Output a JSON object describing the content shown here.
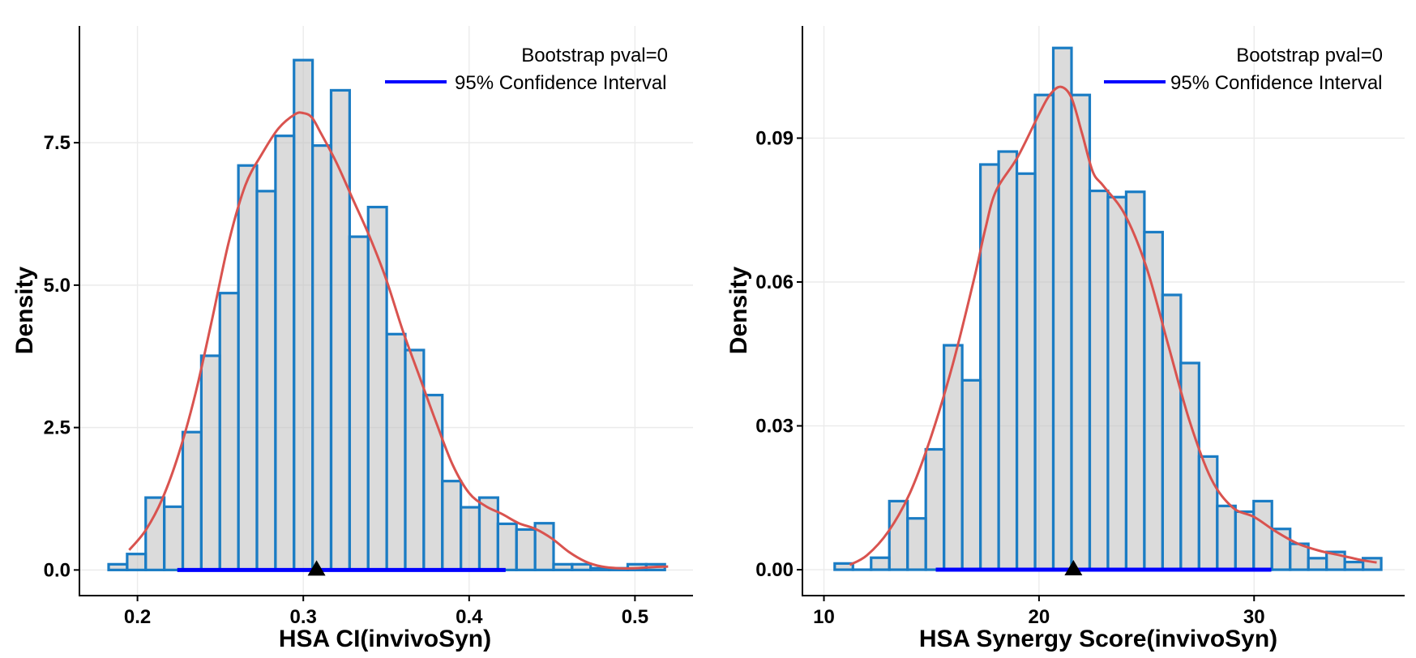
{
  "chart_data": [
    {
      "type": "bar",
      "subtype": "histogram-with-density",
      "xlabel": "HSA CI(invivoSyn)",
      "ylabel": "Density",
      "xlim": [
        0.165,
        0.535
      ],
      "ylim": [
        -0.45,
        9.55
      ],
      "x_ticks": [
        0.2,
        0.3,
        0.4,
        0.5
      ],
      "x_tick_labels": [
        "0.2",
        "0.3",
        "0.4",
        "0.5"
      ],
      "y_ticks": [
        0,
        2.5,
        5.0,
        7.5
      ],
      "y_tick_labels": [
        "0.0",
        "2.5",
        "5.0",
        "7.5"
      ],
      "bin_width": 0.01118,
      "bin_edges_start": 0.1826,
      "bin_values": [
        0.1,
        0.28,
        1.27,
        1.11,
        2.42,
        3.76,
        4.86,
        7.1,
        6.65,
        7.62,
        8.95,
        7.45,
        8.42,
        5.85,
        6.37,
        4.14,
        3.86,
        3.07,
        1.56,
        1.1,
        1.27,
        0.81,
        0.71,
        0.82,
        0.1,
        0.1,
        0.03,
        0.03,
        0.1,
        0.1
      ],
      "density_x": [
        0.195,
        0.205,
        0.215,
        0.225,
        0.235,
        0.245,
        0.255,
        0.265,
        0.275,
        0.285,
        0.295,
        0.3,
        0.305,
        0.31,
        0.32,
        0.33,
        0.34,
        0.35,
        0.36,
        0.37,
        0.38,
        0.39,
        0.4,
        0.41,
        0.42,
        0.43,
        0.44,
        0.45,
        0.46,
        0.47,
        0.48,
        0.49,
        0.5,
        0.51,
        0.52
      ],
      "density_y": [
        0.35,
        0.7,
        1.25,
        2.05,
        3.1,
        4.4,
        5.75,
        6.75,
        7.3,
        7.75,
        8.0,
        8.02,
        7.95,
        7.7,
        7.15,
        6.5,
        5.85,
        5.1,
        4.2,
        3.4,
        2.6,
        1.85,
        1.35,
        1.12,
        0.98,
        0.82,
        0.72,
        0.55,
        0.32,
        0.15,
        0.06,
        0.03,
        0.03,
        0.05,
        0.06
      ],
      "ci": [
        0.224,
        0.422
      ],
      "point_estimate": 0.308,
      "legend": {
        "pval_text": "Bootstrap pval=0",
        "ci_label": "95% Confidence Interval",
        "ci_color": "#0000ff",
        "placement": "top-right"
      }
    },
    {
      "type": "bar",
      "subtype": "histogram-with-density",
      "xlabel": "HSA Synergy Score(invivoSyn)",
      "ylabel": "Density",
      "xlim": [
        9.0,
        37.0
      ],
      "ylim": [
        -0.0054,
        0.1134
      ],
      "x_ticks": [
        10,
        20,
        30
      ],
      "x_tick_labels": [
        "10",
        "20",
        "30"
      ],
      "y_ticks": [
        0,
        0.03,
        0.06,
        0.09
      ],
      "y_tick_labels": [
        "0.00",
        "0.03",
        "0.06",
        "0.09"
      ],
      "bin_width": 0.847,
      "bin_edges_start": 10.5,
      "bin_values": [
        0.0013,
        0.0,
        0.0025,
        0.0143,
        0.0107,
        0.0251,
        0.0468,
        0.0395,
        0.0845,
        0.0872,
        0.0826,
        0.099,
        0.1088,
        0.099,
        0.079,
        0.0777,
        0.0788,
        0.0704,
        0.0573,
        0.0431,
        0.0236,
        0.0133,
        0.0121,
        0.0143,
        0.0085,
        0.0054,
        0.0024,
        0.0037,
        0.0016,
        0.0024
      ],
      "density_x": [
        11.2,
        12.0,
        13.0,
        14.0,
        15.0,
        16.0,
        17.0,
        17.5,
        18.0,
        19.0,
        20.0,
        20.5,
        21.0,
        21.5,
        22.0,
        22.5,
        23.0,
        24.0,
        25.0,
        26.0,
        27.0,
        28.0,
        29.0,
        30.0,
        31.0,
        32.0,
        33.0,
        34.0,
        35.0,
        35.7
      ],
      "density_y": [
        0.001,
        0.003,
        0.008,
        0.016,
        0.028,
        0.043,
        0.061,
        0.071,
        0.079,
        0.086,
        0.095,
        0.099,
        0.1007,
        0.0985,
        0.091,
        0.083,
        0.08,
        0.074,
        0.063,
        0.047,
        0.031,
        0.019,
        0.013,
        0.011,
        0.008,
        0.0055,
        0.004,
        0.003,
        0.002,
        0.0015
      ],
      "ci": [
        15.2,
        30.8
      ],
      "point_estimate": 21.6,
      "legend": {
        "pval_text": "Bootstrap pval=0",
        "ci_label": "95% Confidence Interval",
        "ci_color": "#0000ff",
        "placement": "top-right"
      }
    }
  ]
}
